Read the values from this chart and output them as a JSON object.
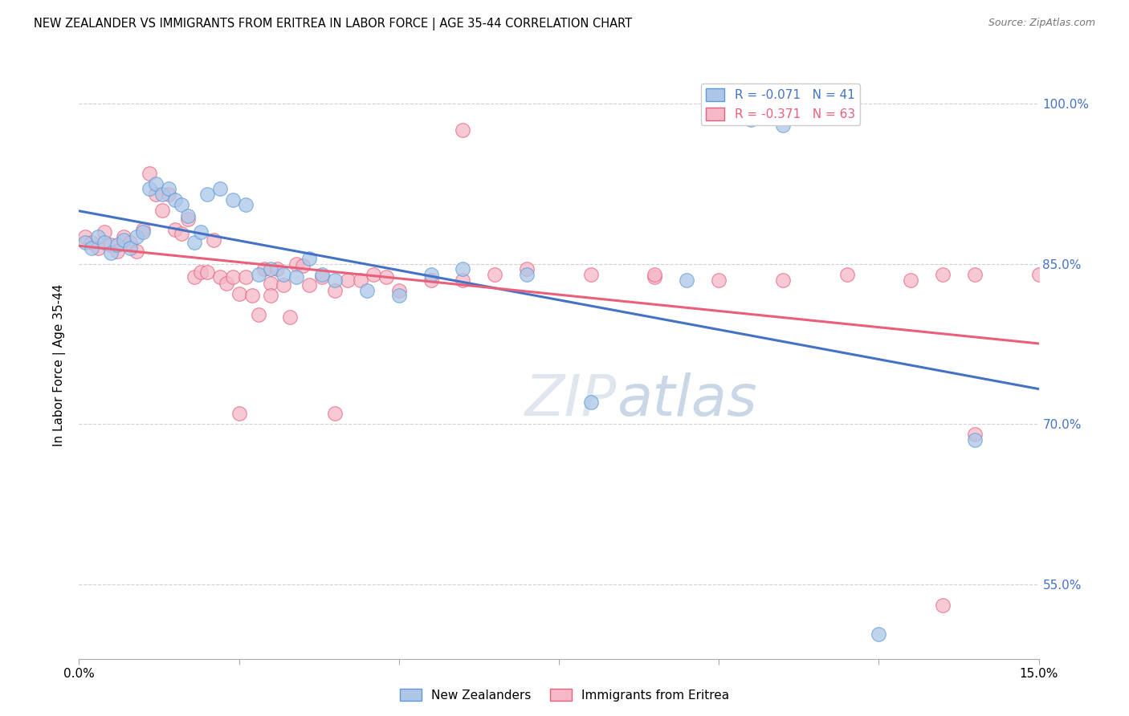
{
  "title": "NEW ZEALANDER VS IMMIGRANTS FROM ERITREA IN LABOR FORCE | AGE 35-44 CORRELATION CHART",
  "source": "Source: ZipAtlas.com",
  "ylabel": "In Labor Force | Age 35-44",
  "xmin": 0.0,
  "xmax": 0.15,
  "ymin": 0.48,
  "ymax": 1.03,
  "blue_fill": "#adc6e8",
  "blue_edge": "#5b9bd5",
  "pink_fill": "#f4b8c8",
  "pink_edge": "#e8607a",
  "blue_line": "#4472c4",
  "pink_line": "#e8607a",
  "watermark_color": "#ccd9e8",
  "nz_x": [
    0.001,
    0.002,
    0.003,
    0.004,
    0.005,
    0.006,
    0.007,
    0.008,
    0.009,
    0.01,
    0.011,
    0.012,
    0.013,
    0.014,
    0.015,
    0.016,
    0.017,
    0.018,
    0.019,
    0.02,
    0.022,
    0.024,
    0.026,
    0.028,
    0.03,
    0.032,
    0.034,
    0.036,
    0.038,
    0.04,
    0.045,
    0.05,
    0.055,
    0.06,
    0.07,
    0.08,
    0.095,
    0.105,
    0.11,
    0.125,
    0.14
  ],
  "nz_y": [
    0.87,
    0.865,
    0.875,
    0.87,
    0.86,
    0.868,
    0.872,
    0.865,
    0.875,
    0.88,
    0.92,
    0.925,
    0.915,
    0.92,
    0.91,
    0.905,
    0.895,
    0.87,
    0.88,
    0.915,
    0.92,
    0.91,
    0.905,
    0.84,
    0.845,
    0.84,
    0.838,
    0.855,
    0.84,
    0.835,
    0.825,
    0.82,
    0.84,
    0.845,
    0.84,
    0.72,
    0.835,
    0.985,
    0.98,
    0.503,
    0.685
  ],
  "er_x": [
    0.001,
    0.002,
    0.003,
    0.004,
    0.005,
    0.006,
    0.007,
    0.008,
    0.009,
    0.01,
    0.011,
    0.012,
    0.013,
    0.014,
    0.015,
    0.016,
    0.017,
    0.018,
    0.019,
    0.02,
    0.021,
    0.022,
    0.023,
    0.024,
    0.025,
    0.026,
    0.027,
    0.028,
    0.029,
    0.03,
    0.031,
    0.032,
    0.033,
    0.034,
    0.035,
    0.036,
    0.038,
    0.04,
    0.042,
    0.044,
    0.046,
    0.048,
    0.05,
    0.055,
    0.06,
    0.065,
    0.07,
    0.08,
    0.09,
    0.1,
    0.11,
    0.12,
    0.13,
    0.135,
    0.14,
    0.15,
    0.025,
    0.03,
    0.04,
    0.06,
    0.09,
    0.135,
    0.14
  ],
  "er_y": [
    0.875,
    0.87,
    0.865,
    0.88,
    0.868,
    0.862,
    0.875,
    0.87,
    0.862,
    0.882,
    0.935,
    0.915,
    0.9,
    0.915,
    0.882,
    0.878,
    0.892,
    0.838,
    0.842,
    0.842,
    0.872,
    0.838,
    0.832,
    0.838,
    0.822,
    0.838,
    0.82,
    0.802,
    0.845,
    0.832,
    0.845,
    0.83,
    0.8,
    0.85,
    0.848,
    0.83,
    0.838,
    0.825,
    0.835,
    0.835,
    0.84,
    0.838,
    0.825,
    0.835,
    0.835,
    0.84,
    0.845,
    0.84,
    0.838,
    0.835,
    0.835,
    0.84,
    0.835,
    0.84,
    0.84,
    0.84,
    0.71,
    0.82,
    0.71,
    0.975,
    0.84,
    0.53,
    0.69
  ]
}
